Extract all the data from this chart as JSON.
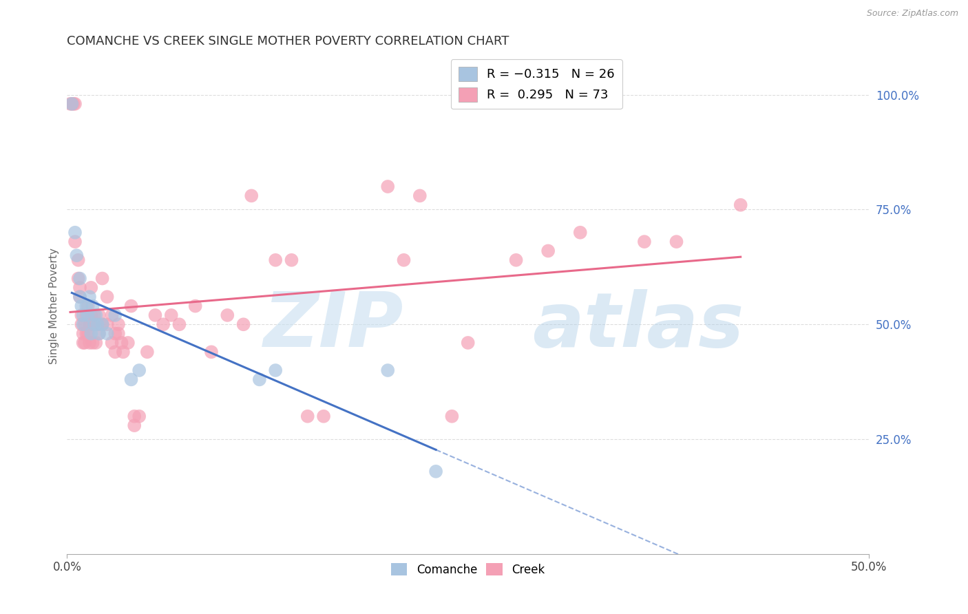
{
  "title": "COMANCHE VS CREEK SINGLE MOTHER POVERTY CORRELATION CHART",
  "source": "Source: ZipAtlas.com",
  "ylabel": "Single Mother Poverty",
  "ytick_labels": [
    "100.0%",
    "75.0%",
    "50.0%",
    "25.0%"
  ],
  "ytick_values": [
    1.0,
    0.75,
    0.5,
    0.25
  ],
  "xlim": [
    0.0,
    0.5
  ],
  "ylim": [
    0.0,
    1.08
  ],
  "comanche_color": "#a8c4e0",
  "creek_color": "#f4a0b5",
  "comanche_line_color": "#4472c4",
  "creek_line_color": "#e8698a",
  "comanche_R": -0.315,
  "comanche_N": 26,
  "creek_R": 0.295,
  "creek_N": 73,
  "comanche_points": [
    [
      0.003,
      0.98
    ],
    [
      0.005,
      0.7
    ],
    [
      0.006,
      0.65
    ],
    [
      0.008,
      0.6
    ],
    [
      0.008,
      0.56
    ],
    [
      0.009,
      0.54
    ],
    [
      0.01,
      0.52
    ],
    [
      0.01,
      0.5
    ],
    [
      0.012,
      0.54
    ],
    [
      0.013,
      0.52
    ],
    [
      0.014,
      0.56
    ],
    [
      0.015,
      0.48
    ],
    [
      0.016,
      0.54
    ],
    [
      0.017,
      0.5
    ],
    [
      0.018,
      0.52
    ],
    [
      0.019,
      0.5
    ],
    [
      0.02,
      0.48
    ],
    [
      0.022,
      0.5
    ],
    [
      0.025,
      0.48
    ],
    [
      0.03,
      0.52
    ],
    [
      0.04,
      0.38
    ],
    [
      0.045,
      0.4
    ],
    [
      0.12,
      0.38
    ],
    [
      0.13,
      0.4
    ],
    [
      0.2,
      0.4
    ],
    [
      0.23,
      0.18
    ]
  ],
  "creek_points": [
    [
      0.002,
      0.98
    ],
    [
      0.003,
      0.98
    ],
    [
      0.004,
      0.98
    ],
    [
      0.005,
      0.98
    ],
    [
      0.005,
      0.68
    ],
    [
      0.007,
      0.64
    ],
    [
      0.007,
      0.6
    ],
    [
      0.008,
      0.58
    ],
    [
      0.008,
      0.56
    ],
    [
      0.009,
      0.52
    ],
    [
      0.009,
      0.5
    ],
    [
      0.01,
      0.48
    ],
    [
      0.01,
      0.46
    ],
    [
      0.011,
      0.5
    ],
    [
      0.011,
      0.46
    ],
    [
      0.012,
      0.52
    ],
    [
      0.012,
      0.48
    ],
    [
      0.013,
      0.54
    ],
    [
      0.013,
      0.48
    ],
    [
      0.014,
      0.5
    ],
    [
      0.014,
      0.46
    ],
    [
      0.015,
      0.58
    ],
    [
      0.015,
      0.52
    ],
    [
      0.016,
      0.5
    ],
    [
      0.016,
      0.46
    ],
    [
      0.017,
      0.52
    ],
    [
      0.018,
      0.5
    ],
    [
      0.018,
      0.46
    ],
    [
      0.019,
      0.5
    ],
    [
      0.02,
      0.52
    ],
    [
      0.02,
      0.48
    ],
    [
      0.022,
      0.6
    ],
    [
      0.022,
      0.5
    ],
    [
      0.025,
      0.56
    ],
    [
      0.025,
      0.5
    ],
    [
      0.028,
      0.52
    ],
    [
      0.028,
      0.46
    ],
    [
      0.03,
      0.48
    ],
    [
      0.03,
      0.44
    ],
    [
      0.032,
      0.5
    ],
    [
      0.032,
      0.48
    ],
    [
      0.034,
      0.46
    ],
    [
      0.035,
      0.44
    ],
    [
      0.038,
      0.46
    ],
    [
      0.04,
      0.54
    ],
    [
      0.042,
      0.3
    ],
    [
      0.042,
      0.28
    ],
    [
      0.045,
      0.3
    ],
    [
      0.05,
      0.44
    ],
    [
      0.055,
      0.52
    ],
    [
      0.06,
      0.5
    ],
    [
      0.065,
      0.52
    ],
    [
      0.07,
      0.5
    ],
    [
      0.08,
      0.54
    ],
    [
      0.09,
      0.44
    ],
    [
      0.1,
      0.52
    ],
    [
      0.11,
      0.5
    ],
    [
      0.115,
      0.78
    ],
    [
      0.13,
      0.64
    ],
    [
      0.14,
      0.64
    ],
    [
      0.15,
      0.3
    ],
    [
      0.16,
      0.3
    ],
    [
      0.2,
      0.8
    ],
    [
      0.21,
      0.64
    ],
    [
      0.22,
      0.78
    ],
    [
      0.24,
      0.3
    ],
    [
      0.25,
      0.46
    ],
    [
      0.28,
      0.64
    ],
    [
      0.3,
      0.66
    ],
    [
      0.32,
      0.7
    ],
    [
      0.36,
      0.68
    ],
    [
      0.38,
      0.68
    ],
    [
      0.42,
      0.76
    ]
  ],
  "watermark_zip": "ZIP",
  "watermark_atlas": "atlas",
  "background_color": "#ffffff",
  "grid_color": "#dddddd",
  "right_axis_color": "#4472c4"
}
